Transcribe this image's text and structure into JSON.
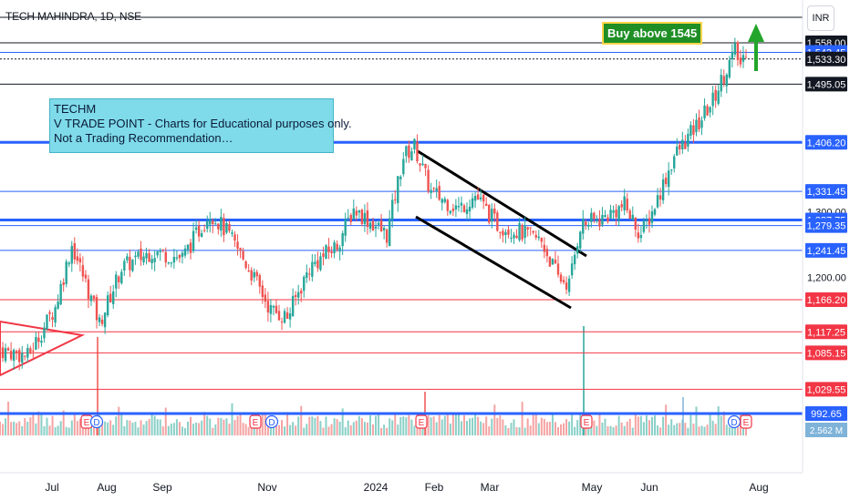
{
  "header": {
    "title": "TECH MAHINDRA, 1D, NSE",
    "currency": "INR"
  },
  "note": {
    "line1": "TECHM",
    "line2": "V TRADE POINT - Charts for Educational purposes only.",
    "line3": "Not a Trading Recommendation…"
  },
  "callout": {
    "text": "Buy above 1545"
  },
  "colors": {
    "up": "#26a69a",
    "down": "#ef5350",
    "level_black": "#131722",
    "level_blue": "#2962ff",
    "level_red": "#f23645",
    "arrow": "#22a52a",
    "volume_up": "#8ad0c7",
    "volume_down": "#f5a3a3"
  },
  "chart_data": {
    "type": "candlestick",
    "symbol": "TECH MAHINDRA",
    "interval": "1D",
    "exchange": "NSE",
    "x_ticks": [
      "Jul",
      "Aug",
      "Sep",
      "Nov",
      "2024",
      "Feb",
      "Mar",
      "May",
      "Jun",
      "Aug"
    ],
    "price_scale_ticks": [
      "1,300.00",
      "1,200.00"
    ],
    "yrange": [
      960,
      1620
    ],
    "levels": [
      {
        "value": 1558.0,
        "label": "1,558.00",
        "color": "black",
        "style": "solid"
      },
      {
        "value": 1543.45,
        "label": "1,543.45",
        "color": "blue",
        "style": "solid"
      },
      {
        "value": 1533.3,
        "label": "1,533.30",
        "color": "black",
        "style": "dotted"
      },
      {
        "value": 1495.05,
        "label": "1,495.05",
        "color": "black",
        "style": "solid"
      },
      {
        "value": 1406.2,
        "label": "1,406.20",
        "color": "blue",
        "style": "thick"
      },
      {
        "value": 1331.45,
        "label": "1,331.45",
        "color": "blue",
        "style": "solid"
      },
      {
        "value": 1287.75,
        "label": "1,287.75",
        "color": "blue",
        "style": "thick"
      },
      {
        "value": 1279.35,
        "label": "1,279.35",
        "color": "blue",
        "style": "solid"
      },
      {
        "value": 1241.45,
        "label": "1,241.45",
        "color": "blue",
        "style": "solid"
      },
      {
        "value": 1166.2,
        "label": "1,166.20",
        "color": "red",
        "style": "solid"
      },
      {
        "value": 1117.25,
        "label": "1,117.25",
        "color": "red",
        "style": "solid"
      },
      {
        "value": 1085.15,
        "label": "1,085.15",
        "color": "red",
        "style": "solid"
      },
      {
        "value": 1029.55,
        "label": "1,029.55",
        "color": "red",
        "style": "solid"
      },
      {
        "value": 992.65,
        "label": "992.65",
        "color": "blue",
        "style": "thick"
      }
    ],
    "volume_label": "2.562 M",
    "earnings_markers": [
      "E",
      "D",
      "E",
      "D",
      "E",
      "E",
      "D",
      "E"
    ],
    "pivots": [
      {
        "t": 0,
        "p": 1090
      },
      {
        "t": 10,
        "p": 1080
      },
      {
        "t": 20,
        "p": 1155
      },
      {
        "t": 26,
        "p": 1250
      },
      {
        "t": 32,
        "p": 1180
      },
      {
        "t": 36,
        "p": 1130
      },
      {
        "t": 44,
        "p": 1215
      },
      {
        "t": 55,
        "p": 1240
      },
      {
        "t": 66,
        "p": 1230
      },
      {
        "t": 76,
        "p": 1300
      },
      {
        "t": 82,
        "p": 1270
      },
      {
        "t": 90,
        "p": 1215
      },
      {
        "t": 98,
        "p": 1150
      },
      {
        "t": 104,
        "p": 1140
      },
      {
        "t": 112,
        "p": 1215
      },
      {
        "t": 122,
        "p": 1250
      },
      {
        "t": 128,
        "p": 1305
      },
      {
        "t": 134,
        "p": 1285
      },
      {
        "t": 140,
        "p": 1265
      },
      {
        "t": 146,
        "p": 1385
      },
      {
        "t": 150,
        "p": 1400
      },
      {
        "t": 156,
        "p": 1330
      },
      {
        "t": 166,
        "p": 1305
      },
      {
        "t": 172,
        "p": 1325
      },
      {
        "t": 180,
        "p": 1280
      },
      {
        "t": 188,
        "p": 1270
      },
      {
        "t": 196,
        "p": 1255
      },
      {
        "t": 202,
        "p": 1200
      },
      {
        "t": 206,
        "p": 1190
      },
      {
        "t": 210,
        "p": 1280
      },
      {
        "t": 218,
        "p": 1290
      },
      {
        "t": 226,
        "p": 1310
      },
      {
        "t": 232,
        "p": 1265
      },
      {
        "t": 236,
        "p": 1300
      },
      {
        "t": 244,
        "p": 1385
      },
      {
        "t": 252,
        "p": 1430
      },
      {
        "t": 258,
        "p": 1470
      },
      {
        "t": 262,
        "p": 1510
      },
      {
        "t": 266,
        "p": 1545
      },
      {
        "t": 268,
        "p": 1525
      },
      {
        "t": 270,
        "p": 1548
      }
    ]
  }
}
